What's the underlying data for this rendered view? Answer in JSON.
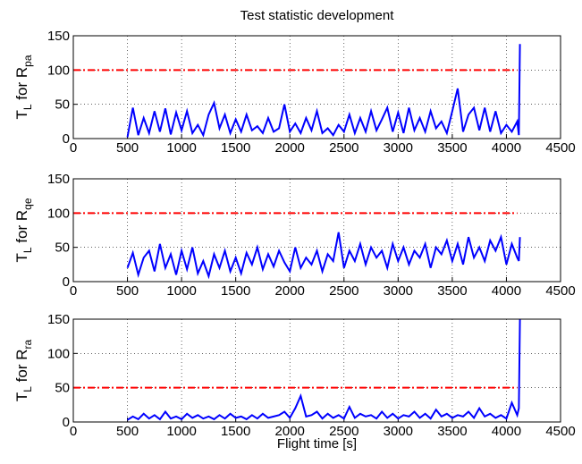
{
  "chart_data": [
    {
      "type": "line",
      "title": "Test statistic development",
      "ylabel": [
        "T",
        "L",
        " for R",
        "pa"
      ],
      "xlim": [
        0,
        4500
      ],
      "xticks": [
        0,
        500,
        1000,
        1500,
        2000,
        2500,
        3000,
        3500,
        4000,
        4500
      ],
      "ylim": [
        0,
        150
      ],
      "yticks": [
        0,
        50,
        100,
        150
      ],
      "grid": true,
      "series": [
        {
          "color": "#0000ff",
          "style": "solid",
          "x": [
            500,
            550,
            600,
            650,
            700,
            750,
            800,
            850,
            900,
            950,
            1000,
            1050,
            1100,
            1150,
            1200,
            1250,
            1300,
            1350,
            1400,
            1450,
            1500,
            1550,
            1600,
            1650,
            1700,
            1750,
            1800,
            1850,
            1900,
            1950,
            2000,
            2050,
            2100,
            2150,
            2200,
            2250,
            2300,
            2350,
            2400,
            2450,
            2500,
            2550,
            2600,
            2650,
            2700,
            2750,
            2800,
            2850,
            2900,
            2950,
            3000,
            3050,
            3100,
            3150,
            3200,
            3250,
            3300,
            3350,
            3400,
            3450,
            3500,
            3550,
            3600,
            3650,
            3700,
            3750,
            3800,
            3850,
            3900,
            3950,
            4000,
            4050,
            4100,
            4115,
            4125
          ],
          "values": [
            2,
            45,
            5,
            30,
            8,
            40,
            10,
            44,
            6,
            38,
            12,
            40,
            8,
            20,
            5,
            35,
            52,
            15,
            35,
            8,
            28,
            10,
            35,
            12,
            18,
            8,
            30,
            10,
            15,
            50,
            10,
            22,
            8,
            30,
            12,
            40,
            8,
            15,
            5,
            20,
            10,
            35,
            8,
            30,
            10,
            40,
            12,
            28,
            45,
            10,
            38,
            8,
            45,
            12,
            30,
            10,
            40,
            15,
            25,
            8,
            40,
            73,
            10,
            35,
            45,
            12,
            45,
            10,
            40,
            8,
            20,
            10,
            25,
            5,
            138
          ]
        },
        {
          "color": "#ff0000",
          "style": "dashdot",
          "x": [
            0,
            4100
          ],
          "values": [
            100,
            100
          ]
        }
      ]
    },
    {
      "type": "line",
      "ylabel": [
        "T",
        "L",
        " for R",
        "qe"
      ],
      "xlim": [
        0,
        4500
      ],
      "xticks": [
        0,
        500,
        1000,
        1500,
        2000,
        2500,
        3000,
        3500,
        4000,
        4500
      ],
      "ylim": [
        0,
        150
      ],
      "yticks": [
        0,
        50,
        100,
        150
      ],
      "grid": true,
      "series": [
        {
          "color": "#0000ff",
          "style": "solid",
          "x": [
            500,
            550,
            600,
            650,
            700,
            750,
            800,
            850,
            900,
            950,
            1000,
            1050,
            1100,
            1150,
            1200,
            1250,
            1300,
            1350,
            1400,
            1450,
            1500,
            1550,
            1600,
            1650,
            1700,
            1750,
            1800,
            1850,
            1900,
            1950,
            2000,
            2050,
            2100,
            2150,
            2200,
            2250,
            2300,
            2350,
            2400,
            2450,
            2500,
            2550,
            2600,
            2650,
            2700,
            2750,
            2800,
            2850,
            2900,
            2950,
            3000,
            3050,
            3100,
            3150,
            3200,
            3250,
            3300,
            3350,
            3400,
            3450,
            3500,
            3550,
            3600,
            3650,
            3700,
            3750,
            3800,
            3850,
            3900,
            3950,
            4000,
            4050,
            4100,
            4115,
            4125
          ],
          "values": [
            20,
            42,
            10,
            35,
            45,
            15,
            55,
            20,
            40,
            10,
            45,
            18,
            50,
            12,
            30,
            8,
            40,
            20,
            45,
            15,
            35,
            12,
            42,
            25,
            50,
            18,
            40,
            22,
            45,
            28,
            15,
            50,
            20,
            35,
            25,
            45,
            15,
            40,
            30,
            72,
            20,
            45,
            30,
            55,
            25,
            50,
            35,
            45,
            20,
            55,
            30,
            50,
            25,
            45,
            35,
            55,
            20,
            50,
            40,
            60,
            30,
            55,
            25,
            65,
            35,
            50,
            30,
            60,
            45,
            65,
            25,
            55,
            35,
            30,
            65
          ]
        },
        {
          "color": "#ff0000",
          "style": "dashdot",
          "x": [
            0,
            4100
          ],
          "values": [
            100,
            100
          ]
        }
      ]
    },
    {
      "type": "line",
      "ylabel": [
        "T",
        "L",
        " for R",
        "ra"
      ],
      "xlabel": "Flight time [s]",
      "xlim": [
        0,
        4500
      ],
      "xticks": [
        0,
        500,
        1000,
        1500,
        2000,
        2500,
        3000,
        3500,
        4000,
        4500
      ],
      "ylim": [
        0,
        150
      ],
      "yticks": [
        0,
        50,
        100,
        150
      ],
      "grid": true,
      "series": [
        {
          "color": "#0000ff",
          "style": "solid",
          "x": [
            500,
            550,
            600,
            650,
            700,
            750,
            800,
            850,
            900,
            950,
            1000,
            1050,
            1100,
            1150,
            1200,
            1250,
            1300,
            1350,
            1400,
            1450,
            1500,
            1550,
            1600,
            1650,
            1700,
            1750,
            1800,
            1850,
            1900,
            1950,
            2000,
            2050,
            2100,
            2150,
            2200,
            2250,
            2300,
            2350,
            2400,
            2450,
            2500,
            2550,
            2600,
            2650,
            2700,
            2750,
            2800,
            2850,
            2900,
            2950,
            3000,
            3050,
            3100,
            3150,
            3200,
            3250,
            3300,
            3350,
            3400,
            3450,
            3500,
            3550,
            3600,
            3650,
            3700,
            3750,
            3800,
            3850,
            3900,
            3950,
            4000,
            4050,
            4100,
            4115,
            4125
          ],
          "values": [
            3,
            8,
            4,
            12,
            5,
            10,
            4,
            15,
            5,
            8,
            4,
            12,
            6,
            10,
            5,
            8,
            4,
            10,
            5,
            12,
            6,
            8,
            4,
            10,
            5,
            12,
            6,
            8,
            10,
            15,
            6,
            20,
            38,
            8,
            10,
            15,
            5,
            12,
            6,
            10,
            5,
            22,
            6,
            12,
            8,
            10,
            5,
            15,
            6,
            12,
            5,
            10,
            8,
            15,
            6,
            12,
            5,
            18,
            8,
            12,
            6,
            10,
            8,
            15,
            6,
            20,
            8,
            12,
            6,
            10,
            5,
            28,
            10,
            20,
            150
          ]
        },
        {
          "color": "#ff0000",
          "style": "dashdot",
          "x": [
            0,
            4100
          ],
          "values": [
            50,
            50
          ]
        }
      ]
    }
  ]
}
